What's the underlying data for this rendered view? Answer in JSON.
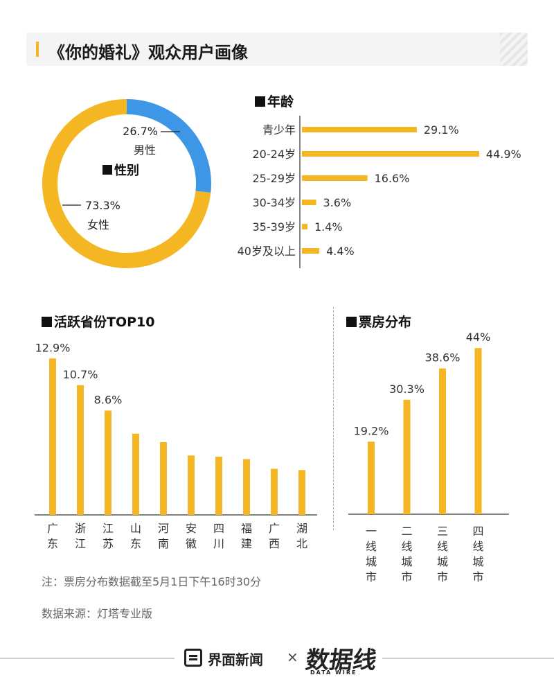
{
  "header": {
    "title": "《你的婚礼》观众用户画像"
  },
  "colors": {
    "accent": "#f4b623",
    "male": "#3d96e6",
    "female": "#f4b623",
    "dark": "#111111"
  },
  "notes": {
    "note1": "注：票房分布数据截至5月1日下午16时30分",
    "source": "数据来源：灯塔专业版"
  },
  "footer": {
    "brand": "界面新闻",
    "times": "×",
    "partner": "数据线",
    "partner_sub": "DATA WIRE"
  },
  "chart_data": [
    {
      "type": "pie",
      "title": "性别",
      "donut": true,
      "slices": [
        {
          "label": "男性",
          "value": 26.7,
          "display": "26.7%",
          "color": "#3d96e6"
        },
        {
          "label": "女性",
          "value": 73.3,
          "display": "73.3%",
          "color": "#f4b623"
        }
      ]
    },
    {
      "type": "bar",
      "orientation": "horizontal",
      "title": "年龄",
      "categories": [
        "青少年",
        "20-24岁",
        "25-29岁",
        "30-34岁",
        "35-39岁",
        "40岁及以上"
      ],
      "values": [
        29.1,
        44.9,
        16.6,
        3.6,
        1.4,
        4.4
      ],
      "labels": [
        "29.1%",
        "44.9%",
        "16.6%",
        "3.6%",
        "1.4%",
        "4.4%"
      ],
      "color": "#f4b623"
    },
    {
      "type": "bar",
      "orientation": "vertical",
      "title": "活跃省份TOP10",
      "categories": [
        "广东",
        "浙江",
        "江苏",
        "山东",
        "河南",
        "安徽",
        "四川",
        "福建",
        "广西",
        "湖北"
      ],
      "values": [
        12.9,
        10.7,
        8.6,
        6.7,
        6.0,
        4.9,
        4.8,
        4.6,
        3.8,
        3.7
      ],
      "labels": [
        "12.9%",
        "10.7%",
        "8.6%",
        "",
        "",
        "",
        "",
        "",
        "",
        ""
      ],
      "color": "#f4b623"
    },
    {
      "type": "bar",
      "orientation": "vertical",
      "title": "票房分布",
      "categories": [
        "一线城市",
        "二线城市",
        "三线城市",
        "四线城市"
      ],
      "values": [
        19.2,
        30.3,
        38.6,
        44
      ],
      "labels": [
        "19.2%",
        "30.3%",
        "38.6%",
        "44%"
      ],
      "color": "#f4b623"
    }
  ]
}
